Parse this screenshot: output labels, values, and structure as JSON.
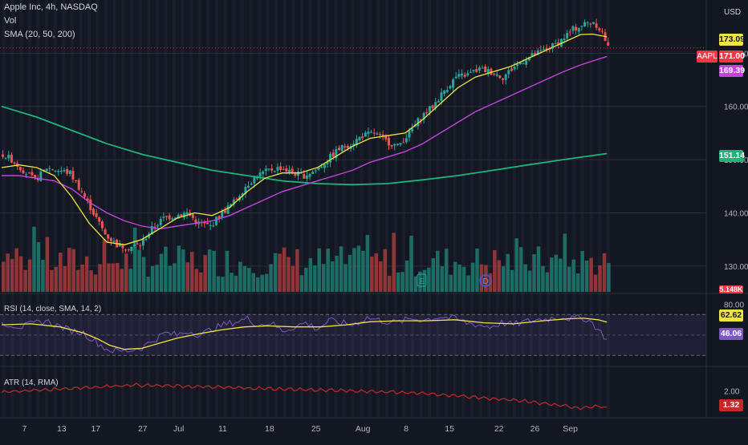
{
  "header": {
    "title": "Apple Inc, 4h, NASDAQ",
    "vol": "Vol",
    "sma_legend": "SMA (20, 50, 200)",
    "currency": "USD"
  },
  "indicators": {
    "rsi_legend": "RSI (14, close, SMA, 14, 2)",
    "atr_legend": "ATR (14, RMA)"
  },
  "price_tags": {
    "ticker": "AAPL",
    "sma20": "173.09",
    "last": "171.00",
    "sma50": "169.39",
    "sma200": "151.14",
    "vol_partial": "5.148K",
    "rsi_ma": "62.62",
    "rsi": "46.06",
    "atr": "1.32"
  },
  "events": {
    "earnings": "E",
    "dividend": "D"
  },
  "colors": {
    "background": "#131722",
    "up": "#26a69a",
    "down": "#ef5350",
    "sma20": "#f0e442",
    "sma50": "#c443e0",
    "sma200": "#1db47a",
    "rsi": "#7e57c2",
    "rsi_ma": "#f0e442",
    "atr": "#c62828",
    "vol_up": "#1e7a70",
    "vol_down": "#a63b3b"
  },
  "chart_data": [
    {
      "type": "candlestick",
      "title": "Apple Inc, 4h, NASDAQ",
      "ylabel": "USD",
      "ylim": [
        125,
        180
      ],
      "yticks": [
        130,
        140,
        150,
        160,
        170
      ],
      "ytick_labels": [
        "130.00",
        "140.00",
        "150.00",
        "160.00",
        "170.00"
      ],
      "xticks": [
        {
          "label": "7",
          "pos": 0.04
        },
        {
          "label": "13",
          "pos": 0.101
        },
        {
          "label": "17",
          "pos": 0.157
        },
        {
          "label": "27",
          "pos": 0.234
        },
        {
          "label": "Jul",
          "pos": 0.293
        },
        {
          "label": "11",
          "pos": 0.365
        },
        {
          "label": "18",
          "pos": 0.442
        },
        {
          "label": "25",
          "pos": 0.518
        },
        {
          "label": "Aug",
          "pos": 0.595
        },
        {
          "label": "8",
          "pos": 0.666
        },
        {
          "label": "15",
          "pos": 0.737
        },
        {
          "label": "22",
          "pos": 0.818
        },
        {
          "label": "26",
          "pos": 0.877
        },
        {
          "label": "Sep",
          "pos": 0.935
        }
      ],
      "series": [
        {
          "name": "SMA 20",
          "value_last": 173.09
        },
        {
          "name": "SMA 50",
          "value_last": 169.39
        },
        {
          "name": "SMA 200",
          "value_last": 151.14
        }
      ],
      "last_price": 171.0,
      "close_path": [
        [
          0,
          151
        ],
        [
          6,
          150
        ],
        [
          14,
          148
        ],
        [
          22,
          146
        ],
        [
          30,
          148.5
        ],
        [
          38,
          148
        ],
        [
          46,
          147.5
        ],
        [
          54,
          144
        ],
        [
          62,
          140
        ],
        [
          70,
          136
        ],
        [
          78,
          134
        ],
        [
          86,
          133.5
        ],
        [
          94,
          134
        ],
        [
          102,
          137
        ],
        [
          110,
          139
        ],
        [
          118,
          139.5
        ],
        [
          126,
          140
        ],
        [
          134,
          138
        ],
        [
          142,
          137.5
        ],
        [
          150,
          140
        ],
        [
          158,
          142
        ],
        [
          166,
          145
        ],
        [
          174,
          147
        ],
        [
          182,
          148
        ],
        [
          190,
          148.5
        ],
        [
          198,
          147.5
        ],
        [
          206,
          147
        ],
        [
          214,
          148
        ],
        [
          222,
          150
        ],
        [
          230,
          152
        ],
        [
          238,
          153
        ],
        [
          246,
          154.5
        ],
        [
          254,
          155
        ],
        [
          262,
          153.5
        ],
        [
          270,
          152.5
        ],
        [
          278,
          155
        ],
        [
          286,
          158
        ],
        [
          294,
          160
        ],
        [
          302,
          163
        ],
        [
          310,
          165.5
        ],
        [
          318,
          166
        ],
        [
          326,
          167
        ],
        [
          334,
          166.5
        ],
        [
          342,
          165.5
        ],
        [
          350,
          167.5
        ],
        [
          358,
          169
        ],
        [
          366,
          170
        ],
        [
          374,
          171
        ],
        [
          382,
          172.5
        ],
        [
          390,
          174.5
        ],
        [
          398,
          175.5
        ],
        [
          404,
          176
        ],
        [
          410,
          174
        ],
        [
          414,
          171
        ]
      ],
      "sma20": [
        [
          0,
          148.5
        ],
        [
          12,
          149
        ],
        [
          24,
          148.5
        ],
        [
          36,
          147
        ],
        [
          48,
          143
        ],
        [
          60,
          138
        ],
        [
          72,
          134.5
        ],
        [
          84,
          134
        ],
        [
          96,
          135
        ],
        [
          108,
          137
        ],
        [
          120,
          139
        ],
        [
          132,
          140
        ],
        [
          144,
          139.5
        ],
        [
          156,
          141
        ],
        [
          168,
          144
        ],
        [
          180,
          146.5
        ],
        [
          192,
          147.5
        ],
        [
          204,
          147.5
        ],
        [
          216,
          148.5
        ],
        [
          228,
          150.5
        ],
        [
          240,
          152.5
        ],
        [
          252,
          154
        ],
        [
          264,
          154.5
        ],
        [
          276,
          155
        ],
        [
          288,
          157.5
        ],
        [
          300,
          160.5
        ],
        [
          312,
          163.5
        ],
        [
          324,
          165.5
        ],
        [
          336,
          166.5
        ],
        [
          348,
          167.5
        ],
        [
          360,
          169
        ],
        [
          372,
          170.5
        ],
        [
          384,
          172
        ],
        [
          396,
          173.5
        ],
        [
          404,
          173.6
        ],
        [
          414,
          173.09
        ]
      ],
      "sma50": [
        [
          0,
          147
        ],
        [
          12,
          147
        ],
        [
          24,
          146.5
        ],
        [
          36,
          146
        ],
        [
          48,
          144.5
        ],
        [
          60,
          142
        ],
        [
          72,
          140
        ],
        [
          84,
          138.5
        ],
        [
          96,
          137.5
        ],
        [
          108,
          137
        ],
        [
          120,
          137.5
        ],
        [
          132,
          138
        ],
        [
          144,
          138.5
        ],
        [
          156,
          139.5
        ],
        [
          168,
          141
        ],
        [
          180,
          142.5
        ],
        [
          192,
          144
        ],
        [
          204,
          145
        ],
        [
          216,
          146
        ],
        [
          228,
          147
        ],
        [
          240,
          148
        ],
        [
          252,
          149.5
        ],
        [
          264,
          150.5
        ],
        [
          276,
          151.5
        ],
        [
          288,
          153
        ],
        [
          300,
          155
        ],
        [
          312,
          157
        ],
        [
          324,
          159
        ],
        [
          336,
          160.5
        ],
        [
          348,
          162
        ],
        [
          360,
          163.5
        ],
        [
          372,
          165
        ],
        [
          384,
          166.5
        ],
        [
          396,
          167.8
        ],
        [
          406,
          168.7
        ],
        [
          414,
          169.39
        ]
      ],
      "sma200": [
        [
          0,
          160
        ],
        [
          24,
          158
        ],
        [
          48,
          155.5
        ],
        [
          72,
          153
        ],
        [
          96,
          151
        ],
        [
          120,
          149.5
        ],
        [
          144,
          148
        ],
        [
          168,
          147
        ],
        [
          192,
          146
        ],
        [
          216,
          145.5
        ],
        [
          240,
          145.3
        ],
        [
          264,
          145.5
        ],
        [
          288,
          146.2
        ],
        [
          312,
          147
        ],
        [
          336,
          148
        ],
        [
          360,
          149
        ],
        [
          384,
          150
        ],
        [
          414,
          151.14
        ]
      ]
    },
    {
      "type": "bar",
      "title": "Vol",
      "last_value_label": "5.148K"
    },
    {
      "type": "line",
      "title": "RSI (14, close, SMA, 14, 2)",
      "ylim": [
        20,
        90
      ],
      "yticks": [
        80
      ],
      "ytick_labels": [
        "80.00"
      ],
      "bands": [
        70,
        50,
        30
      ],
      "series": [
        {
          "name": "RSI",
          "value_last": 46.06
        },
        {
          "name": "RSI SMA",
          "value_last": 62.62
        }
      ]
    },
    {
      "type": "line",
      "title": "ATR (14, RMA)",
      "ylim": [
        0.9,
        3.0
      ],
      "yticks": [
        2.0
      ],
      "ytick_labels": [
        "2.00"
      ],
      "series": [
        {
          "name": "ATR",
          "value_last": 1.32
        }
      ]
    }
  ]
}
